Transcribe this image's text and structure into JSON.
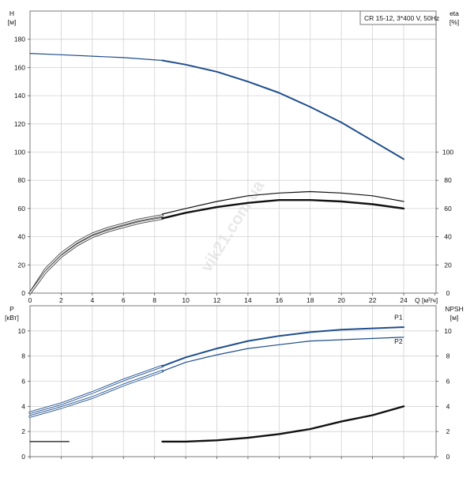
{
  "watermark": "vik21.com.ua",
  "colors": {
    "blue": "#1f4e8c",
    "black": "#111111",
    "grid": "#d2d2d2"
  },
  "chart_data": [
    {
      "type": "line",
      "panel": "top",
      "title_box": "CR 15-12, 3*400 V, 50Hz",
      "xlabel": "Q [м³/ч]",
      "x_ticks": [
        "0",
        "2",
        "4",
        "6",
        "8",
        "10",
        "12",
        "14",
        "16",
        "18",
        "20",
        "22",
        "24"
      ],
      "xlim": [
        0,
        26
      ],
      "y_left": {
        "label_lines": [
          "H",
          "[м]"
        ],
        "ticks": [
          "0",
          "20",
          "40",
          "60",
          "80",
          "100",
          "120",
          "140",
          "160",
          "180"
        ],
        "lim": [
          0,
          200
        ]
      },
      "y_right": {
        "label_lines": [
          "eta",
          "[%]"
        ],
        "ticks": [
          "0",
          "20",
          "40",
          "60",
          "80",
          "100"
        ],
        "lim": [
          0,
          200
        ]
      },
      "grid": true,
      "series": [
        {
          "axis": "left",
          "style": "thin-blue",
          "x": [
            0,
            2,
            4,
            6,
            8.5
          ],
          "y": [
            170,
            169,
            168,
            167,
            165
          ]
        },
        {
          "axis": "left",
          "style": "bold-blue",
          "x": [
            8.5,
            10,
            12,
            14,
            16,
            18,
            20,
            22,
            24
          ],
          "y": [
            165,
            162,
            157,
            150,
            142,
            132,
            121,
            108,
            95
          ]
        },
        {
          "axis": "right",
          "style": "thin-double",
          "x": [
            0,
            1,
            2,
            3,
            4,
            5,
            6,
            7,
            8.5
          ],
          "y": [
            0,
            17,
            28,
            36,
            42,
            46,
            49,
            52,
            55
          ]
        },
        {
          "axis": "right",
          "style": "thin-double",
          "x": [
            0,
            1,
            2,
            3,
            4,
            5,
            6,
            7,
            8.5
          ],
          "y": [
            0,
            15,
            26,
            34,
            40,
            44,
            47,
            50,
            53
          ]
        },
        {
          "axis": "right",
          "style": "thin-black",
          "x": [
            8.5,
            10,
            12,
            14,
            16,
            18,
            20,
            22,
            24
          ],
          "y": [
            56,
            60,
            65,
            69,
            71,
            72,
            71,
            69,
            65
          ]
        },
        {
          "axis": "right",
          "style": "bold-black",
          "x": [
            8.5,
            10,
            12,
            14,
            16,
            18,
            20,
            22,
            24
          ],
          "y": [
            53,
            57,
            61,
            64,
            66,
            66,
            65,
            63,
            60
          ]
        }
      ]
    },
    {
      "type": "line",
      "panel": "bottom",
      "xlim": [
        0,
        26
      ],
      "y_left": {
        "label_lines": [
          "P",
          "[кВт]"
        ],
        "ticks": [
          "0",
          "2",
          "4",
          "6",
          "8",
          "10"
        ],
        "lim": [
          0,
          12
        ]
      },
      "y_right": {
        "label_lines": [
          "NPSH",
          "[м]"
        ],
        "ticks": [
          "0",
          "2",
          "4",
          "6",
          "8",
          "10"
        ],
        "lim": [
          0,
          12
        ]
      },
      "grid": true,
      "labels": [
        {
          "text": "P1",
          "x": 23.4,
          "y": 10.9
        },
        {
          "text": "P2",
          "x": 23.4,
          "y": 9.0
        }
      ],
      "series": [
        {
          "name": "P1",
          "axis": "left",
          "style": "thin-double",
          "x": [
            0,
            2,
            4,
            6,
            8.5
          ],
          "y": [
            3.5,
            4.2,
            5.1,
            6.1,
            7.2
          ]
        },
        {
          "name": "P1",
          "axis": "left",
          "style": "bold-blue",
          "x": [
            8.5,
            10,
            12,
            14,
            16,
            18,
            20,
            22,
            24
          ],
          "y": [
            7.2,
            7.9,
            8.6,
            9.2,
            9.6,
            9.9,
            10.1,
            10.2,
            10.3
          ]
        },
        {
          "name": "P2",
          "axis": "left",
          "style": "thin-double",
          "x": [
            0,
            2,
            4,
            6,
            8.5
          ],
          "y": [
            3.2,
            3.9,
            4.7,
            5.7,
            6.8
          ]
        },
        {
          "name": "P2",
          "axis": "left",
          "style": "thin-blue",
          "x": [
            8.5,
            10,
            12,
            14,
            16,
            18,
            20,
            22,
            24
          ],
          "y": [
            6.8,
            7.5,
            8.1,
            8.6,
            8.9,
            9.2,
            9.3,
            9.4,
            9.5
          ]
        },
        {
          "axis": "right",
          "style": "thin-black",
          "x": [
            0,
            2.5
          ],
          "y": [
            1.2,
            1.2
          ]
        },
        {
          "axis": "right",
          "style": "bold-black",
          "x": [
            8.5,
            10,
            12,
            14,
            16,
            18,
            20,
            22,
            24
          ],
          "y": [
            1.2,
            1.2,
            1.3,
            1.5,
            1.8,
            2.2,
            2.8,
            3.3,
            4.0
          ]
        }
      ]
    }
  ]
}
